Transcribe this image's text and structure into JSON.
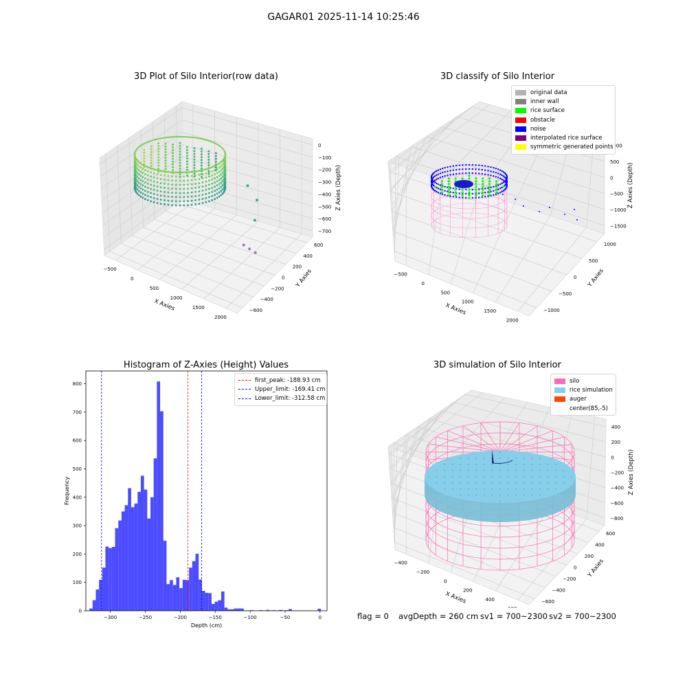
{
  "figure": {
    "suptitle": "GAGAR01 2025-11-14 10:25:46",
    "footer": {
      "flag": "flag = 0",
      "avg_depth": "avgDepth = 260 cm",
      "sv1": "sv1 = 700~2300",
      "sv2": "sv2 = 700~2300"
    }
  },
  "chart_data": [
    {
      "type": "scatter",
      "title": "3D Plot of Silo Interior(row data)",
      "xlabel": "X Axies",
      "ylabel": "Y Axies",
      "zlabel": "Z Axies (Depth)",
      "x_ticks": [
        "−500",
        "0",
        "500",
        "1000",
        "1500",
        "2000"
      ],
      "y_ticks": [
        "−600",
        "−400",
        "−200",
        "0",
        "200",
        "400",
        "600"
      ],
      "z_ticks": [
        "0",
        "−100",
        "−200",
        "−300",
        "−400",
        "−500",
        "−600",
        "−700"
      ],
      "colormap": "viridis",
      "outliers": [
        {
          "x": 1650,
          "y": -200,
          "z": -450,
          "color": "#9b77c0"
        },
        {
          "x": 1700,
          "y": -150,
          "z": -500,
          "color": "#9b77c0"
        },
        {
          "x": 1750,
          "y": -100,
          "z": -550,
          "color": "#9b77c0"
        },
        {
          "x": 1500,
          "y": 100,
          "z": -420,
          "color": "#4aa0a0"
        },
        {
          "x": 1300,
          "y": 300,
          "z": -380,
          "color": "#4aa0a0"
        },
        {
          "x": 1000,
          "y": 400,
          "z": -350,
          "color": "#3fae8a"
        }
      ]
    },
    {
      "type": "scatter",
      "title": "3D classify of Silo Interior",
      "xlabel": "X Axies",
      "ylabel": "Y Axies",
      "zlabel": "Z Axies (Depth)",
      "x_ticks": [
        "−500",
        "0",
        "500",
        "1000",
        "1500",
        "2000"
      ],
      "y_ticks": [
        "−1000",
        "−500",
        "0",
        "500",
        "1000"
      ],
      "z_ticks": [
        "1000",
        "500",
        "0",
        "−500",
        "−1000",
        "−1500"
      ],
      "legend": [
        {
          "label": "original data",
          "color": "#b2b2b2"
        },
        {
          "label": "inner wall",
          "color": "#808080"
        },
        {
          "label": "rice surface",
          "color": "#00ff00"
        },
        {
          "label": "obstacle",
          "color": "#ff0000"
        },
        {
          "label": "noise",
          "color": "#0000ff"
        },
        {
          "label": "interpolated rice surface",
          "color": "#800080"
        },
        {
          "label": "symmetric generated points",
          "color": "#ffff00"
        }
      ]
    },
    {
      "type": "bar",
      "title": "Histogram of Z-Axies (Height) Values",
      "xlabel": "Depth (cm)",
      "ylabel": "Frequency",
      "xlim": [
        -335,
        10
      ],
      "ylim": [
        0,
        845
      ],
      "x_ticks": [
        -300,
        -250,
        -200,
        -150,
        -100,
        -50,
        0
      ],
      "y_ticks": [
        0,
        100,
        200,
        300,
        400,
        500,
        600,
        700,
        800
      ],
      "bar_color": "#4c4cff",
      "bins": [
        {
          "x0": -330,
          "x1": -325.4,
          "v": 8
        },
        {
          "x0": -325.4,
          "x1": -320.8,
          "v": 37
        },
        {
          "x0": -320.8,
          "x1": -316.2,
          "v": 75
        },
        {
          "x0": -316.2,
          "x1": -311.6,
          "v": 109
        },
        {
          "x0": -311.6,
          "x1": -307.0,
          "v": 152
        },
        {
          "x0": -307.0,
          "x1": -302.4,
          "v": 226
        },
        {
          "x0": -302.4,
          "x1": -297.8,
          "v": 221
        },
        {
          "x0": -297.8,
          "x1": -293.2,
          "v": 225
        },
        {
          "x0": -293.2,
          "x1": -288.6,
          "v": 291
        },
        {
          "x0": -288.6,
          "x1": -284.0,
          "v": 318
        },
        {
          "x0": -284.0,
          "x1": -279.4,
          "v": 350
        },
        {
          "x0": -279.4,
          "x1": -274.8,
          "v": 372
        },
        {
          "x0": -274.8,
          "x1": -270.2,
          "v": 432
        },
        {
          "x0": -270.2,
          "x1": -265.6,
          "v": 365
        },
        {
          "x0": -265.6,
          "x1": -261.0,
          "v": 378
        },
        {
          "x0": -261.0,
          "x1": -256.4,
          "v": 419
        },
        {
          "x0": -256.4,
          "x1": -251.8,
          "v": 476
        },
        {
          "x0": -251.8,
          "x1": -247.2,
          "v": 427
        },
        {
          "x0": -247.2,
          "x1": -242.6,
          "v": 325
        },
        {
          "x0": -242.6,
          "x1": -238.0,
          "v": 400
        },
        {
          "x0": -238.0,
          "x1": -233.4,
          "v": 537
        },
        {
          "x0": -233.4,
          "x1": -228.8,
          "v": 808
        },
        {
          "x0": -228.8,
          "x1": -224.2,
          "v": 703
        },
        {
          "x0": -224.2,
          "x1": -219.6,
          "v": 247
        },
        {
          "x0": -219.6,
          "x1": -215.0,
          "v": 94
        },
        {
          "x0": -215.0,
          "x1": -210.4,
          "v": 108
        },
        {
          "x0": -210.4,
          "x1": -205.8,
          "v": 91
        },
        {
          "x0": -205.8,
          "x1": -201.2,
          "v": 118
        },
        {
          "x0": -201.2,
          "x1": -196.6,
          "v": 80
        },
        {
          "x0": -196.6,
          "x1": -192.0,
          "v": 109
        },
        {
          "x0": -192.0,
          "x1": -187.4,
          "v": 108
        },
        {
          "x0": -187.4,
          "x1": -182.8,
          "v": 152
        },
        {
          "x0": -182.8,
          "x1": -178.2,
          "v": 175
        },
        {
          "x0": -178.2,
          "x1": -173.6,
          "v": 201
        },
        {
          "x0": -173.6,
          "x1": -169.0,
          "v": 110
        },
        {
          "x0": -169.0,
          "x1": -164.4,
          "v": 70
        },
        {
          "x0": -164.4,
          "x1": -159.8,
          "v": 63
        },
        {
          "x0": -159.8,
          "x1": -155.2,
          "v": 62
        },
        {
          "x0": -155.2,
          "x1": -150.6,
          "v": 24
        },
        {
          "x0": -150.6,
          "x1": -146.0,
          "v": 32
        },
        {
          "x0": -146.0,
          "x1": -141.4,
          "v": 37
        },
        {
          "x0": -141.4,
          "x1": -136.8,
          "v": 68
        },
        {
          "x0": -136.8,
          "x1": -132.2,
          "v": 11
        },
        {
          "x0": -132.2,
          "x1": -127.6,
          "v": 5
        },
        {
          "x0": -127.6,
          "x1": -123.0,
          "v": 5
        },
        {
          "x0": -123.0,
          "x1": -118.4,
          "v": 8
        },
        {
          "x0": -118.4,
          "x1": -113.8,
          "v": 8
        },
        {
          "x0": -113.8,
          "x1": -109.2,
          "v": 8
        },
        {
          "x0": -109.2,
          "x1": -104.6,
          "v": 1
        },
        {
          "x0": -104.6,
          "x1": -100.0,
          "v": 1
        },
        {
          "x0": -100.0,
          "x1": -95.4,
          "v": 2
        },
        {
          "x0": -95.4,
          "x1": -90.8,
          "v": 1
        },
        {
          "x0": -90.8,
          "x1": -86.2,
          "v": 1
        },
        {
          "x0": -86.2,
          "x1": -81.6,
          "v": 2
        },
        {
          "x0": -81.6,
          "x1": -77.0,
          "v": 1
        },
        {
          "x0": -77.0,
          "x1": -72.4,
          "v": 3
        },
        {
          "x0": -72.4,
          "x1": -67.8,
          "v": 1
        },
        {
          "x0": -67.8,
          "x1": -63.2,
          "v": 2
        },
        {
          "x0": -63.2,
          "x1": -58.6,
          "v": 1
        },
        {
          "x0": -58.6,
          "x1": -54.0,
          "v": 3
        },
        {
          "x0": -54.0,
          "x1": -49.4,
          "v": 1
        },
        {
          "x0": -49.4,
          "x1": -44.8,
          "v": 2
        },
        {
          "x0": -44.8,
          "x1": -40.2,
          "v": 6
        },
        {
          "x0": -40.2,
          "x1": -35.6,
          "v": 1
        },
        {
          "x0": -35.6,
          "x1": -31.0,
          "v": 1
        },
        {
          "x0": -31.0,
          "x1": -26.4,
          "v": 1
        },
        {
          "x0": -26.4,
          "x1": -21.8,
          "v": 1
        },
        {
          "x0": -21.8,
          "x1": -17.2,
          "v": 1
        },
        {
          "x0": -17.2,
          "x1": -12.6,
          "v": 1
        },
        {
          "x0": -12.6,
          "x1": -8.0,
          "v": 1
        },
        {
          "x0": -8.0,
          "x1": -3.4,
          "v": 1
        },
        {
          "x0": -3.4,
          "x1": 1.2,
          "v": 7
        }
      ],
      "vlines": [
        {
          "label": "first_peak: -188.93 cm",
          "x": -188.93,
          "color": "#ff0000"
        },
        {
          "label": "Upper_limit: -169.41 cm",
          "x": -169.41,
          "color": "#0000ff"
        },
        {
          "label": "Lower_limit: -312.58 cm",
          "x": -312.58,
          "color": "#0000ff"
        }
      ]
    },
    {
      "type": "scatter",
      "title": "3D simulation of Silo Interior",
      "xlabel": "X Axies",
      "ylabel": "Y Axies",
      "zlabel": "Z Axies (Depth)",
      "x_ticks": [
        "−400",
        "−200",
        "0",
        "200",
        "400",
        "600"
      ],
      "y_ticks": [
        "−600",
        "−400",
        "−200",
        "0",
        "200",
        "400",
        "600"
      ],
      "z_ticks": [
        "400",
        "200",
        "0",
        "−200",
        "−400",
        "−600",
        "−800"
      ],
      "legend": [
        {
          "label": "silo",
          "color": "#ff69b4"
        },
        {
          "label": "rice simulation",
          "color": "#87ceeb"
        },
        {
          "label": "auger",
          "color": "#ff4500"
        },
        {
          "label": "center(85,-5)",
          "color": "#ffffff"
        }
      ]
    }
  ]
}
